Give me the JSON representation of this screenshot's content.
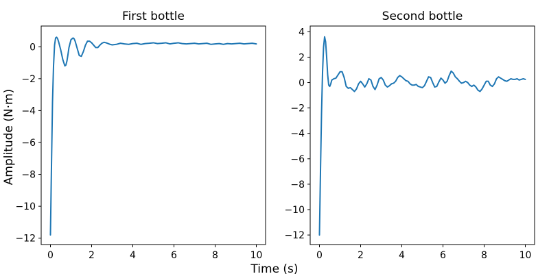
{
  "figure": {
    "xlabel": "Time (s)",
    "ylabel": "Amplitude (N·m)"
  },
  "chart_data": [
    {
      "type": "line",
      "title": "First bottle",
      "xlabel": "Time (s)",
      "ylabel": "Amplitude (N·m)",
      "xlim": [
        -0.45,
        10.45
      ],
      "ylim": [
        -12.4,
        1.3
      ],
      "xticks": [
        0,
        2,
        4,
        6,
        8,
        10
      ],
      "yticks": [
        0,
        -2,
        -4,
        -6,
        -8,
        -10,
        -12
      ],
      "grid": false,
      "series": [
        {
          "color": "#1f77b4",
          "x": [
            0,
            0.05,
            0.1,
            0.15,
            0.2,
            0.25,
            0.3,
            0.35,
            0.4,
            0.45,
            0.5,
            0.6,
            0.7,
            0.75,
            0.8,
            0.85,
            0.9,
            1.0,
            1.1,
            1.15,
            1.2,
            1.3,
            1.4,
            1.5,
            1.6,
            1.7,
            1.8,
            1.9,
            2.0,
            2.1,
            2.2,
            2.3,
            2.4,
            2.5,
            2.6,
            2.7,
            2.8,
            2.9,
            3.0,
            3.2,
            3.4,
            3.6,
            3.8,
            4.0,
            4.2,
            4.4,
            4.6,
            4.8,
            5.0,
            5.2,
            5.4,
            5.6,
            5.8,
            6.0,
            6.2,
            6.4,
            6.6,
            6.8,
            7.0,
            7.2,
            7.4,
            7.6,
            7.8,
            8.0,
            8.2,
            8.4,
            8.6,
            8.8,
            9.0,
            9.2,
            9.4,
            9.6,
            9.8,
            10.0
          ],
          "y": [
            -11.8,
            -7.5,
            -3.5,
            -1.2,
            0.1,
            0.55,
            0.6,
            0.5,
            0.3,
            0.05,
            -0.2,
            -0.8,
            -1.2,
            -1.15,
            -0.9,
            -0.5,
            -0.05,
            0.45,
            0.55,
            0.5,
            0.35,
            -0.1,
            -0.55,
            -0.6,
            -0.3,
            0.1,
            0.35,
            0.35,
            0.25,
            0.1,
            -0.05,
            -0.05,
            0.1,
            0.22,
            0.28,
            0.25,
            0.2,
            0.15,
            0.12,
            0.15,
            0.22,
            0.18,
            0.15,
            0.2,
            0.22,
            0.15,
            0.2,
            0.22,
            0.25,
            0.2,
            0.22,
            0.25,
            0.18,
            0.22,
            0.25,
            0.2,
            0.18,
            0.2,
            0.22,
            0.18,
            0.2,
            0.22,
            0.15,
            0.18,
            0.2,
            0.15,
            0.2,
            0.18,
            0.2,
            0.22,
            0.18,
            0.2,
            0.22,
            0.18
          ]
        }
      ]
    },
    {
      "type": "line",
      "title": "Second bottle",
      "xlabel": "Time (s)",
      "ylabel": "",
      "xlim": [
        -0.45,
        10.45
      ],
      "ylim": [
        -12.75,
        4.45
      ],
      "xticks": [
        0,
        2,
        4,
        6,
        8,
        10
      ],
      "yticks": [
        4,
        2,
        0,
        -2,
        -4,
        -6,
        -8,
        -10,
        -12
      ],
      "grid": false,
      "series": [
        {
          "color": "#1f77b4",
          "x": [
            0,
            0.05,
            0.1,
            0.15,
            0.2,
            0.25,
            0.3,
            0.35,
            0.4,
            0.45,
            0.5,
            0.55,
            0.6,
            0.7,
            0.8,
            0.9,
            1.0,
            1.1,
            1.2,
            1.3,
            1.4,
            1.5,
            1.6,
            1.7,
            1.8,
            1.9,
            2.0,
            2.1,
            2.2,
            2.3,
            2.4,
            2.5,
            2.6,
            2.7,
            2.8,
            2.9,
            3.0,
            3.1,
            3.2,
            3.3,
            3.4,
            3.5,
            3.6,
            3.7,
            3.8,
            3.9,
            4.0,
            4.1,
            4.2,
            4.3,
            4.4,
            4.5,
            4.6,
            4.7,
            4.8,
            4.9,
            5.0,
            5.1,
            5.2,
            5.3,
            5.4,
            5.5,
            5.6,
            5.7,
            5.8,
            5.9,
            6.0,
            6.1,
            6.2,
            6.3,
            6.4,
            6.5,
            6.6,
            6.7,
            6.8,
            6.9,
            7.0,
            7.1,
            7.2,
            7.3,
            7.4,
            7.5,
            7.6,
            7.7,
            7.8,
            7.9,
            8.0,
            8.1,
            8.2,
            8.3,
            8.4,
            8.5,
            8.6,
            8.7,
            8.8,
            8.9,
            9.0,
            9.1,
            9.2,
            9.3,
            9.4,
            9.5,
            9.6,
            9.7,
            9.8,
            9.9,
            10.0
          ],
          "y": [
            -12.0,
            -7.0,
            -2.5,
            0.8,
            2.8,
            3.6,
            3.2,
            2.0,
            0.6,
            -0.2,
            -0.3,
            -0.1,
            0.2,
            0.3,
            0.35,
            0.6,
            0.85,
            0.85,
            0.4,
            -0.3,
            -0.45,
            -0.4,
            -0.55,
            -0.7,
            -0.5,
            -0.1,
            0.1,
            -0.1,
            -0.35,
            -0.1,
            0.3,
            0.2,
            -0.3,
            -0.55,
            -0.2,
            0.3,
            0.4,
            0.2,
            -0.2,
            -0.35,
            -0.25,
            -0.1,
            -0.05,
            0.1,
            0.4,
            0.55,
            0.45,
            0.3,
            0.15,
            0.1,
            -0.1,
            -0.2,
            -0.2,
            -0.15,
            -0.3,
            -0.35,
            -0.4,
            -0.25,
            0.1,
            0.45,
            0.4,
            0.0,
            -0.35,
            -0.3,
            0.05,
            0.35,
            0.2,
            -0.05,
            0.1,
            0.55,
            0.9,
            0.75,
            0.45,
            0.3,
            0.1,
            -0.05,
            0.0,
            0.1,
            0.0,
            -0.2,
            -0.3,
            -0.2,
            -0.35,
            -0.6,
            -0.7,
            -0.5,
            -0.2,
            0.1,
            0.1,
            -0.2,
            -0.3,
            -0.1,
            0.3,
            0.45,
            0.35,
            0.25,
            0.15,
            0.1,
            0.2,
            0.3,
            0.25,
            0.25,
            0.3,
            0.2,
            0.25,
            0.3,
            0.25
          ]
        }
      ]
    }
  ]
}
